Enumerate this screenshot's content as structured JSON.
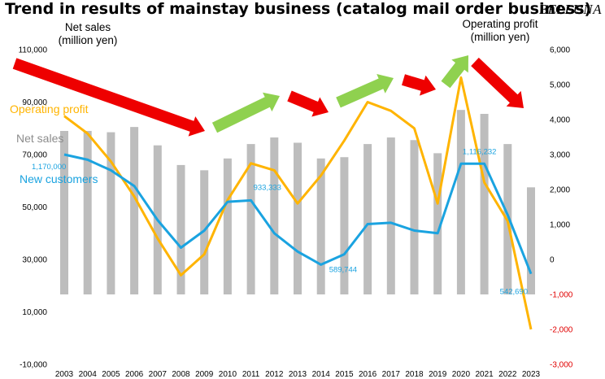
{
  "title": "Trend in results of mainstay business (catalog mail order business)",
  "brand": "BELLUNA",
  "left_axis_title": [
    "Net sales",
    "(million yen)"
  ],
  "right_axis_title": [
    "Operating profit",
    "(million yen)"
  ],
  "labels": {
    "operating_profit": "Operating profit",
    "net_sales": "Net sales",
    "new_customers": "New customers"
  },
  "colors": {
    "net_sales_bar": "#bdbdbd",
    "operating_profit_line": "#ffb400",
    "new_customers_line": "#1aa3e0",
    "arrow_down": "#ee0000",
    "arrow_up": "#8fd14f",
    "right_axis_negative": "#e00000"
  },
  "chart_data": {
    "type": "bar+line",
    "categories": [
      "2003",
      "2004",
      "2005",
      "2006",
      "2007",
      "2008",
      "2009",
      "2010",
      "2011",
      "2012",
      "2013",
      "2014",
      "2015",
      "2016",
      "2017",
      "2018",
      "2019",
      "2020",
      "2021",
      "2022",
      "2023"
    ],
    "left_axis": {
      "ylim": [
        -10000,
        110000
      ],
      "ticks": [
        -10000,
        10000,
        30000,
        50000,
        70000,
        90000,
        110000
      ],
      "tick_labels": [
        "-10,000",
        "10,000",
        "30,000",
        "50,000",
        "70,000",
        "90,000",
        "110,000"
      ]
    },
    "right_axis": {
      "ylim": [
        -3000,
        6000
      ],
      "ticks": [
        -3000,
        -2000,
        -1000,
        0,
        1000,
        2000,
        3000,
        4000,
        5000,
        6000
      ],
      "tick_labels": [
        "-3,000",
        "-2,000",
        "-1,000",
        "0",
        "1,000",
        "2,000",
        "3,000",
        "4,000",
        "5,000",
        "6,000"
      ]
    },
    "bar_base": -1000,
    "series": [
      {
        "name": "Net sales",
        "type": "bar",
        "axis": "left",
        "values": [
          79000,
          79000,
          78500,
          80500,
          73500,
          66000,
          64000,
          68500,
          74000,
          76500,
          74500,
          68500,
          69000,
          74000,
          76500,
          75500,
          70500,
          87000,
          85500,
          74000,
          57500
        ]
      },
      {
        "name": "Operating profit",
        "type": "line",
        "axis": "right",
        "values": [
          4100,
          3600,
          2800,
          1800,
          600,
          -450,
          150,
          1700,
          2750,
          2550,
          1600,
          2400,
          3400,
          4500,
          4250,
          3750,
          1600,
          5200,
          2200,
          1100,
          -2000
        ]
      },
      {
        "name": "New customers",
        "type": "line",
        "axis": "left",
        "values": [
          70000,
          68000,
          64000,
          58000,
          45000,
          34500,
          41000,
          52000,
          52500,
          40000,
          33000,
          28000,
          32000,
          43500,
          44000,
          41000,
          40000,
          66500,
          66500,
          47000,
          24500
        ]
      }
    ],
    "data_labels": [
      {
        "series": "New customers",
        "category": "2003",
        "text": "1,170,000"
      },
      {
        "series": "New customers",
        "category": "2011",
        "text": "933,333"
      },
      {
        "series": "New customers",
        "category": "2014",
        "text": "589,744"
      },
      {
        "series": "New customers",
        "category": "2020",
        "text": "1,116,232"
      },
      {
        "series": "New customers",
        "category": "2023",
        "text": "542,690"
      }
    ],
    "trend_arrows": [
      "down",
      "up",
      "down",
      "up",
      "down",
      "up",
      "down"
    ]
  }
}
